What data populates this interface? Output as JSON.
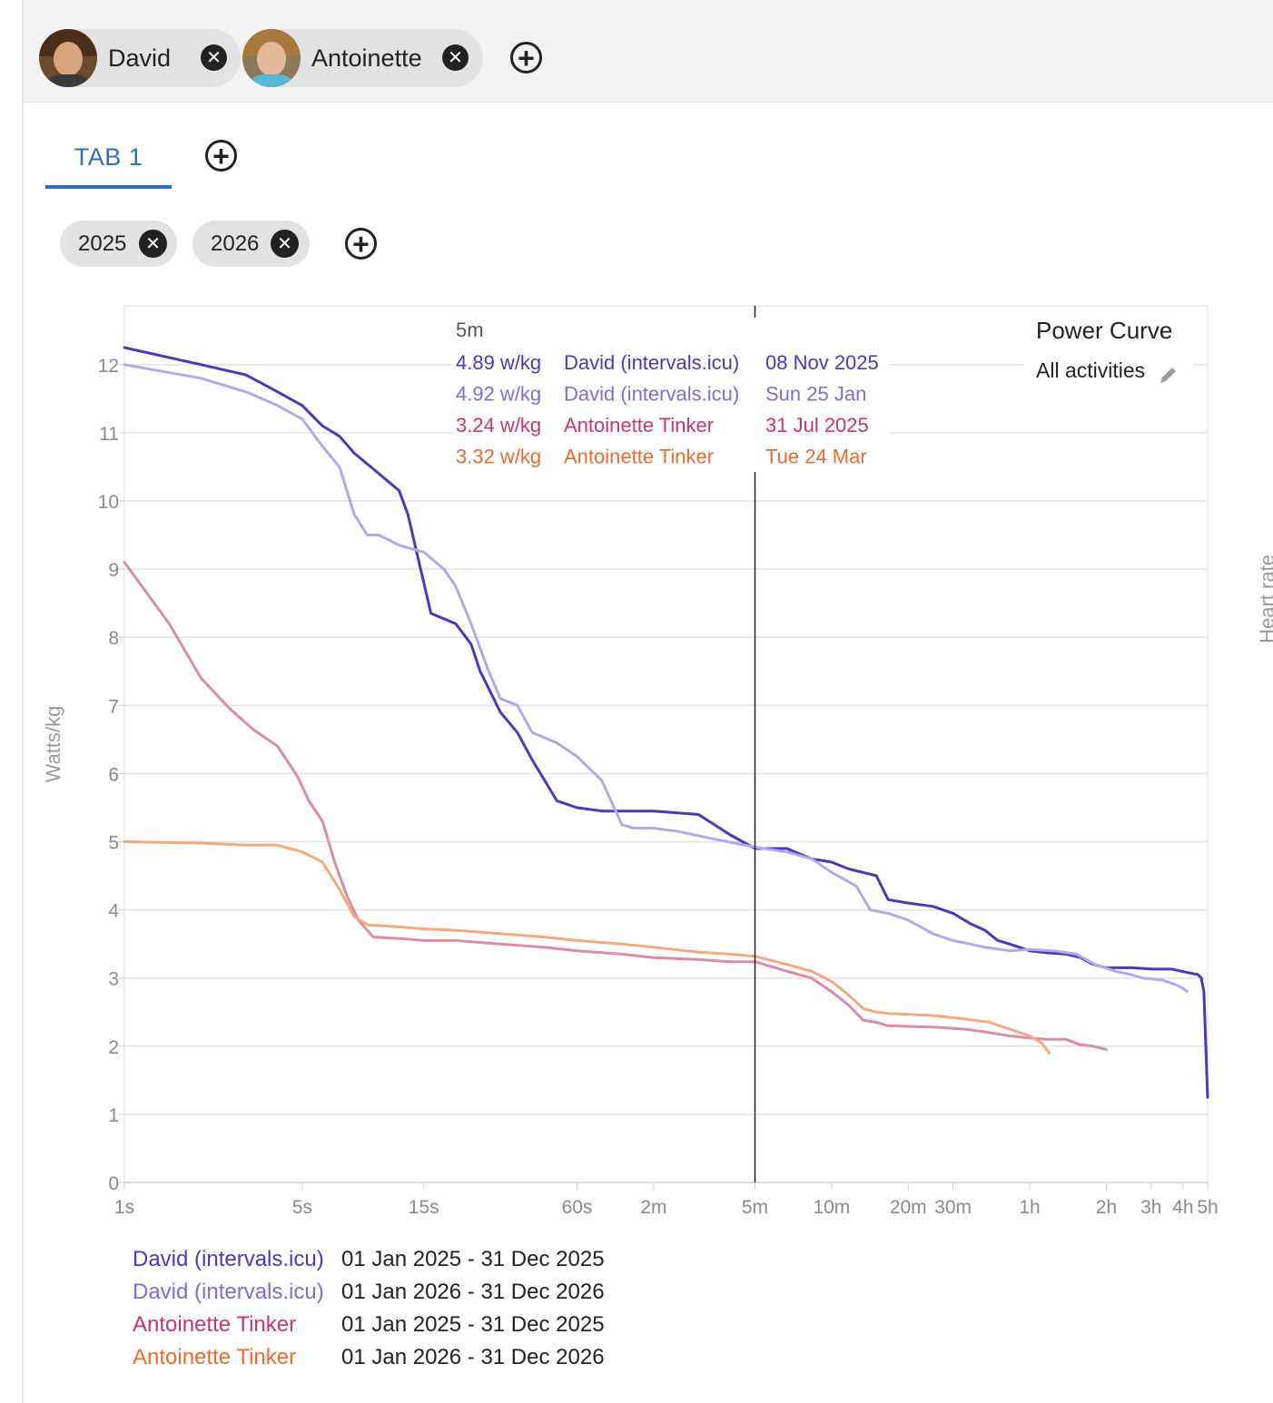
{
  "athletes": [
    {
      "name": "David",
      "avatar": "avatar",
      "close_icon": "close-icon"
    },
    {
      "name": "Antoinette",
      "avatar": "avatar",
      "close_icon": "close-icon"
    }
  ],
  "add_athlete_icon": "add-circle-icon",
  "tabs": [
    {
      "label": "TAB 1",
      "active": true
    }
  ],
  "add_tab_icon": "add-circle-icon",
  "date_filters": [
    {
      "label": "2025"
    },
    {
      "label": "2026"
    }
  ],
  "add_filter_icon": "add-circle-icon",
  "chart": {
    "title": "Power Curve",
    "subtitle": "All activities",
    "edit_icon": "pencil-icon",
    "right_axis_label": "Heart rate",
    "tooltip": {
      "duration": "5m",
      "rows": [
        {
          "value": "4.92 w/kg",
          "name": "David (intervals.icu)",
          "date": "Sun 25 Jan",
          "color": "#7e6cdd"
        },
        {
          "value": "4.89 w/kg",
          "name": "David (intervals.icu)",
          "date": "08 Nov 2025",
          "color": "#5235bd"
        },
        {
          "value": "3.24 w/kg",
          "name": "Antoinette Tinker",
          "date": "31 Jul 2025",
          "color": "#c8356f"
        },
        {
          "value": "3.32 w/kg",
          "name": "Antoinette Tinker",
          "date": "Tue 24 Mar",
          "color": "#ec6a2c"
        }
      ]
    }
  },
  "chart_data": {
    "type": "line",
    "title": "Power Curve",
    "subtitle": "All activities",
    "ylabel": "Watts/kg",
    "xlabel": "",
    "ylim": [
      0,
      12.8
    ],
    "yticks": [
      0,
      1,
      2,
      3,
      4,
      5,
      6,
      7,
      8,
      9,
      10,
      11,
      12
    ],
    "x_scale": "log",
    "x_unit": "seconds",
    "xlim": [
      1,
      18000
    ],
    "xticks": [
      {
        "label": "1s",
        "seconds": 1
      },
      {
        "label": "5s",
        "seconds": 5
      },
      {
        "label": "15s",
        "seconds": 15
      },
      {
        "label": "60s",
        "seconds": 60
      },
      {
        "label": "2m",
        "seconds": 120
      },
      {
        "label": "5m",
        "seconds": 300
      },
      {
        "label": "10m",
        "seconds": 600
      },
      {
        "label": "20m",
        "seconds": 1200
      },
      {
        "label": "30m",
        "seconds": 1800
      },
      {
        "label": "1h",
        "seconds": 3600
      },
      {
        "label": "2h",
        "seconds": 7200
      },
      {
        "label": "3h",
        "seconds": 10800
      },
      {
        "label": "4h",
        "seconds": 14400
      },
      {
        "label": "5h",
        "seconds": 18000
      }
    ],
    "cursor_seconds": 300,
    "grid": true,
    "series": [
      {
        "name": "David (intervals.icu)",
        "color": "#5235bd",
        "width": 3,
        "points": [
          [
            1,
            12.25
          ],
          [
            2,
            12.0
          ],
          [
            3,
            11.85
          ],
          [
            4,
            11.6
          ],
          [
            5,
            11.4
          ],
          [
            6,
            11.1
          ],
          [
            7,
            10.95
          ],
          [
            8,
            10.7
          ],
          [
            10,
            10.4
          ],
          [
            12,
            10.15
          ],
          [
            13,
            9.8
          ],
          [
            16,
            8.35
          ],
          [
            20,
            8.2
          ],
          [
            23,
            7.9
          ],
          [
            25,
            7.5
          ],
          [
            30,
            6.9
          ],
          [
            35,
            6.6
          ],
          [
            40,
            6.2
          ],
          [
            50,
            5.6
          ],
          [
            60,
            5.5
          ],
          [
            75,
            5.45
          ],
          [
            90,
            5.45
          ],
          [
            120,
            5.45
          ],
          [
            180,
            5.4
          ],
          [
            240,
            5.1
          ],
          [
            300,
            4.9
          ],
          [
            400,
            4.9
          ],
          [
            500,
            4.75
          ],
          [
            600,
            4.7
          ],
          [
            700,
            4.6
          ],
          [
            900,
            4.5
          ],
          [
            1000,
            4.15
          ],
          [
            1200,
            4.1
          ],
          [
            1500,
            4.05
          ],
          [
            1800,
            3.95
          ],
          [
            2100,
            3.8
          ],
          [
            2400,
            3.7
          ],
          [
            2700,
            3.55
          ],
          [
            3000,
            3.5
          ],
          [
            3600,
            3.4
          ],
          [
            4200,
            3.37
          ],
          [
            5000,
            3.35
          ],
          [
            5700,
            3.3
          ],
          [
            6400,
            3.2
          ],
          [
            7200,
            3.15
          ],
          [
            9000,
            3.15
          ],
          [
            11000,
            3.13
          ],
          [
            13000,
            3.13
          ],
          [
            15000,
            3.08
          ],
          [
            16500,
            3.05
          ],
          [
            17000,
            3.0
          ],
          [
            17400,
            2.8
          ],
          [
            18000,
            1.25
          ]
        ]
      },
      {
        "name": "David (intervals.icu)",
        "color": "#b3a7ee",
        "width": 3,
        "points": [
          [
            1,
            12.0
          ],
          [
            2,
            11.8
          ],
          [
            3,
            11.6
          ],
          [
            4,
            11.4
          ],
          [
            5,
            11.2
          ],
          [
            6,
            10.8
          ],
          [
            7,
            10.5
          ],
          [
            8,
            9.8
          ],
          [
            9,
            9.5
          ],
          [
            10,
            9.5
          ],
          [
            12,
            9.35
          ],
          [
            15,
            9.25
          ],
          [
            18,
            9.0
          ],
          [
            20,
            8.75
          ],
          [
            23,
            8.2
          ],
          [
            27,
            7.5
          ],
          [
            30,
            7.1
          ],
          [
            35,
            7.0
          ],
          [
            40,
            6.6
          ],
          [
            50,
            6.45
          ],
          [
            60,
            6.25
          ],
          [
            75,
            5.9
          ],
          [
            90,
            5.25
          ],
          [
            100,
            5.2
          ],
          [
            120,
            5.2
          ],
          [
            150,
            5.15
          ],
          [
            200,
            5.05
          ],
          [
            300,
            4.92
          ],
          [
            400,
            4.85
          ],
          [
            500,
            4.75
          ],
          [
            600,
            4.55
          ],
          [
            750,
            4.35
          ],
          [
            850,
            4.0
          ],
          [
            1000,
            3.95
          ],
          [
            1200,
            3.85
          ],
          [
            1500,
            3.65
          ],
          [
            1800,
            3.55
          ],
          [
            2100,
            3.5
          ],
          [
            2400,
            3.45
          ],
          [
            3000,
            3.4
          ],
          [
            3600,
            3.42
          ],
          [
            4500,
            3.4
          ],
          [
            5500,
            3.35
          ],
          [
            6500,
            3.2
          ],
          [
            7800,
            3.1
          ],
          [
            9000,
            3.05
          ],
          [
            10000,
            3.0
          ],
          [
            12000,
            2.97
          ],
          [
            13500,
            2.9
          ],
          [
            14400,
            2.85
          ],
          [
            15000,
            2.8
          ]
        ]
      },
      {
        "name": "Antoinette Tinker",
        "color": "#dd8aab",
        "width": 3,
        "points": [
          [
            1,
            9.1
          ],
          [
            1.5,
            8.2
          ],
          [
            2,
            7.4
          ],
          [
            2.6,
            6.95
          ],
          [
            3.2,
            6.65
          ],
          [
            4,
            6.4
          ],
          [
            4.8,
            5.95
          ],
          [
            5.3,
            5.6
          ],
          [
            6,
            5.3
          ],
          [
            6.7,
            4.7
          ],
          [
            7.5,
            4.2
          ],
          [
            8.3,
            3.85
          ],
          [
            9.5,
            3.6
          ],
          [
            12,
            3.58
          ],
          [
            15,
            3.55
          ],
          [
            20,
            3.55
          ],
          [
            30,
            3.5
          ],
          [
            45,
            3.45
          ],
          [
            60,
            3.4
          ],
          [
            90,
            3.35
          ],
          [
            120,
            3.3
          ],
          [
            180,
            3.27
          ],
          [
            240,
            3.24
          ],
          [
            300,
            3.24
          ],
          [
            400,
            3.1
          ],
          [
            500,
            3.0
          ],
          [
            600,
            2.8
          ],
          [
            700,
            2.6
          ],
          [
            800,
            2.38
          ],
          [
            900,
            2.35
          ],
          [
            1000,
            2.3
          ],
          [
            1500,
            2.28
          ],
          [
            2000,
            2.25
          ],
          [
            2500,
            2.2
          ],
          [
            3000,
            2.15
          ],
          [
            3600,
            2.12
          ],
          [
            4200,
            2.1
          ],
          [
            5000,
            2.1
          ],
          [
            5700,
            2.02
          ],
          [
            6400,
            2.0
          ],
          [
            7200,
            1.95
          ]
        ]
      },
      {
        "name": "Antoinette Tinker",
        "color": "#f2a97c",
        "width": 3,
        "points": [
          [
            1,
            5.0
          ],
          [
            2,
            4.98
          ],
          [
            3,
            4.95
          ],
          [
            4,
            4.95
          ],
          [
            5,
            4.85
          ],
          [
            6,
            4.7
          ],
          [
            7,
            4.3
          ],
          [
            8,
            3.9
          ],
          [
            9,
            3.78
          ],
          [
            12,
            3.75
          ],
          [
            15,
            3.72
          ],
          [
            20,
            3.7
          ],
          [
            30,
            3.65
          ],
          [
            45,
            3.6
          ],
          [
            60,
            3.55
          ],
          [
            90,
            3.5
          ],
          [
            120,
            3.45
          ],
          [
            180,
            3.38
          ],
          [
            240,
            3.35
          ],
          [
            300,
            3.32
          ],
          [
            400,
            3.2
          ],
          [
            500,
            3.1
          ],
          [
            600,
            2.95
          ],
          [
            700,
            2.75
          ],
          [
            800,
            2.55
          ],
          [
            900,
            2.5
          ],
          [
            1000,
            2.48
          ],
          [
            1500,
            2.45
          ],
          [
            2000,
            2.4
          ],
          [
            2500,
            2.35
          ],
          [
            3000,
            2.25
          ],
          [
            3600,
            2.15
          ],
          [
            4000,
            2.05
          ],
          [
            4300,
            1.9
          ]
        ]
      }
    ]
  },
  "legend": [
    {
      "name": "David (intervals.icu)",
      "range": "01 Jan 2025 - 31 Dec 2025",
      "color": "#5235bd"
    },
    {
      "name": "David (intervals.icu)",
      "range": "01 Jan 2026 - 31 Dec 2026",
      "color": "#7e6cdd"
    },
    {
      "name": "Antoinette Tinker",
      "range": "01 Jan 2025 - 31 Dec 2025",
      "color": "#c8356f"
    },
    {
      "name": "Antoinette Tinker",
      "range": "01 Jan 2026 - 31 Dec 2026",
      "color": "#ec6a2c"
    }
  ]
}
